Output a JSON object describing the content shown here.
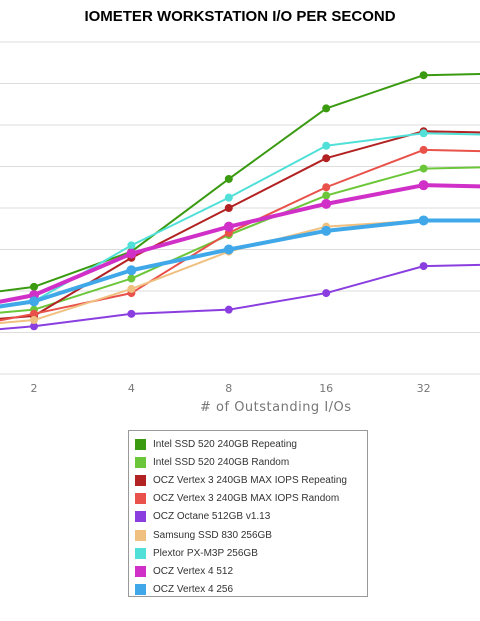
{
  "chart_data": {
    "type": "line",
    "title": "IOMETER WORKSTATION I/O PER SECOND",
    "xlabel": "# of Outstanding I/Os",
    "ylabel": "",
    "x_tick_labels": [
      "2",
      "4",
      "8",
      "16",
      "32"
    ],
    "x_scale": "log2",
    "x": [
      1,
      2,
      4,
      8,
      16,
      32,
      64
    ],
    "ylim": [
      0,
      8
    ],
    "grid": true,
    "legend_position": "bottom-center",
    "series": [
      {
        "name": "Intel SSD 520 240GB Repeating",
        "color": "#3a9a10",
        "values": [
          1.8,
          2.1,
          2.95,
          4.7,
          6.4,
          7.2,
          7.25
        ]
      },
      {
        "name": "Intel SSD 520 240GB Random",
        "color": "#6cc63a",
        "values": [
          1.35,
          1.55,
          2.3,
          3.35,
          4.3,
          4.95,
          5.0
        ]
      },
      {
        "name": "OCZ Vertex 3 240GB MAX IOPS Repeating",
        "color": "#b22222",
        "values": [
          1.2,
          1.4,
          2.8,
          4.0,
          5.2,
          5.85,
          5.8
        ]
      },
      {
        "name": "OCZ Vertex 3 240GB MAX IOPS Random",
        "color": "#e8524a",
        "values": [
          1.0,
          1.45,
          1.95,
          3.4,
          4.5,
          5.4,
          5.35
        ]
      },
      {
        "name": "OCZ Octane 512GB v1.13",
        "color": "#8a3ee0",
        "values": [
          0.95,
          1.15,
          1.45,
          1.55,
          1.95,
          2.6,
          2.65
        ]
      },
      {
        "name": "Samsung SSD 830 256GB",
        "color": "#f0c080",
        "values": [
          1.1,
          1.3,
          2.05,
          2.95,
          3.55,
          3.7,
          3.7
        ]
      },
      {
        "name": "Plextor PX-M3P 256GB",
        "color": "#50e0d8",
        "values": [
          1.4,
          1.75,
          3.1,
          4.25,
          5.5,
          5.8,
          5.75
        ]
      },
      {
        "name": "OCZ Vertex 4 512",
        "color": "#d030c8",
        "values": [
          1.45,
          1.9,
          2.9,
          3.55,
          4.1,
          4.55,
          4.5
        ]
      },
      {
        "name": "OCZ Vertex 4 256",
        "color": "#40a8e8",
        "values": [
          1.4,
          1.75,
          2.5,
          3.0,
          3.45,
          3.7,
          3.7
        ]
      }
    ]
  }
}
